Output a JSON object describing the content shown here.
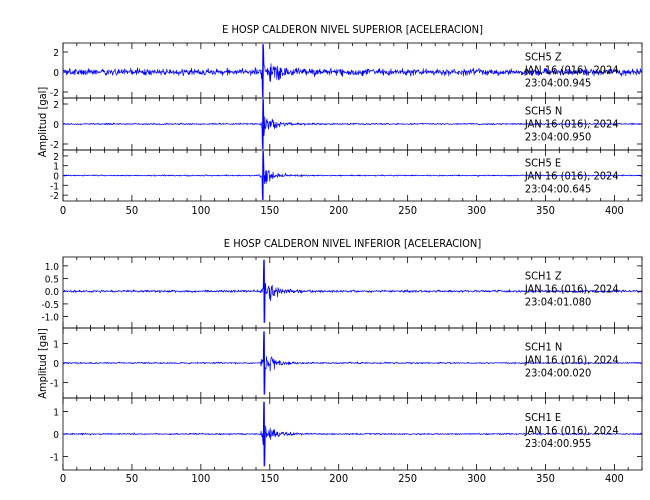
{
  "panels": [
    {
      "title": "E HOSP CALDERON NIVEL SUPERIOR [ACELERACION]",
      "ylabel": "Amplitud  [gal]",
      "xticks": [
        "0",
        "50",
        "100",
        "150",
        "200",
        "250",
        "300",
        "350",
        "400"
      ]
    },
    {
      "title": "E HOSP CALDERON NIVEL INFERIOR [ACELERACION]",
      "ylabel": "Amplitud  [gal]",
      "xticks": [
        "0",
        "50",
        "100",
        "150",
        "200",
        "250",
        "300",
        "350",
        "400"
      ]
    }
  ],
  "chart_data": {
    "type": "line",
    "x_range": [
      0,
      420
    ],
    "x_major_ticks": [
      0,
      50,
      100,
      150,
      200,
      250,
      300,
      350,
      400
    ],
    "grid": false,
    "line_color": "#0000ff",
    "panels": [
      {
        "title": "E HOSP CALDERON NIVEL SUPERIOR [ACELERACION]",
        "ylabel": "Amplitud  [gal]",
        "traces": [
          {
            "station": "SCH5",
            "component": "Z",
            "date": "JAN 16 (016), 2024",
            "time": "23:04:00.945",
            "ylim": [
              -2.6,
              2.9
            ],
            "yticks": [
              -2,
              0,
              2
            ],
            "noise_amplitude": 0.5,
            "event_onset": 142,
            "event_peak": 2.9,
            "decay_s": 12
          },
          {
            "station": "SCH5",
            "component": "N",
            "date": "JAN 16 (016), 2024",
            "time": "23:04:00.950",
            "ylim": [
              -2.6,
              2.6
            ],
            "yticks": [
              -2,
              0,
              2
            ],
            "noise_amplitude": 0.12,
            "event_onset": 142,
            "event_peak": 2.6,
            "decay_s": 8
          },
          {
            "station": "SCH5",
            "component": "E",
            "date": "JAN 16 (016), 2024",
            "time": "23:04:00.645",
            "ylim": [
              -2.6,
              2.6
            ],
            "yticks": [
              -2,
              -1,
              0,
              1,
              2
            ],
            "noise_amplitude": 0.1,
            "event_onset": 142,
            "event_peak": 2.6,
            "decay_s": 8
          }
        ]
      },
      {
        "title": "E HOSP CALDERON NIVEL INFERIOR [ACELERACION]",
        "ylabel": "Amplitud  [gal]",
        "traces": [
          {
            "station": "SCH1",
            "component": "Z",
            "date": "JAN 16 (016), 2024",
            "time": "23:04:01.080",
            "ylim": [
              -1.45,
              1.35
            ],
            "yticks": [
              -1.0,
              -0.5,
              0.0,
              0.5,
              1.0
            ],
            "tick_labels": [
              "-1.0",
              "-0.5",
              "0.0",
              "0.5",
              "1.0"
            ],
            "noise_amplitude": 0.07,
            "event_onset": 143,
            "event_peak": 1.3,
            "decay_s": 8
          },
          {
            "station": "SCH1",
            "component": "N",
            "date": "JAN 16 (016), 2024",
            "time": "23:04:00.020",
            "ylim": [
              -1.8,
              1.8
            ],
            "yticks": [
              -1,
              0,
              1
            ],
            "noise_amplitude": 0.06,
            "event_onset": 143,
            "event_peak": 1.7,
            "decay_s": 7
          },
          {
            "station": "SCH1",
            "component": "E",
            "date": "JAN 16 (016), 2024",
            "time": "23:04:00.955",
            "ylim": [
              -1.6,
              1.6
            ],
            "yticks": [
              -1,
              0,
              1
            ],
            "noise_amplitude": 0.05,
            "event_onset": 143,
            "event_peak": 1.5,
            "decay_s": 7
          }
        ]
      }
    ]
  }
}
